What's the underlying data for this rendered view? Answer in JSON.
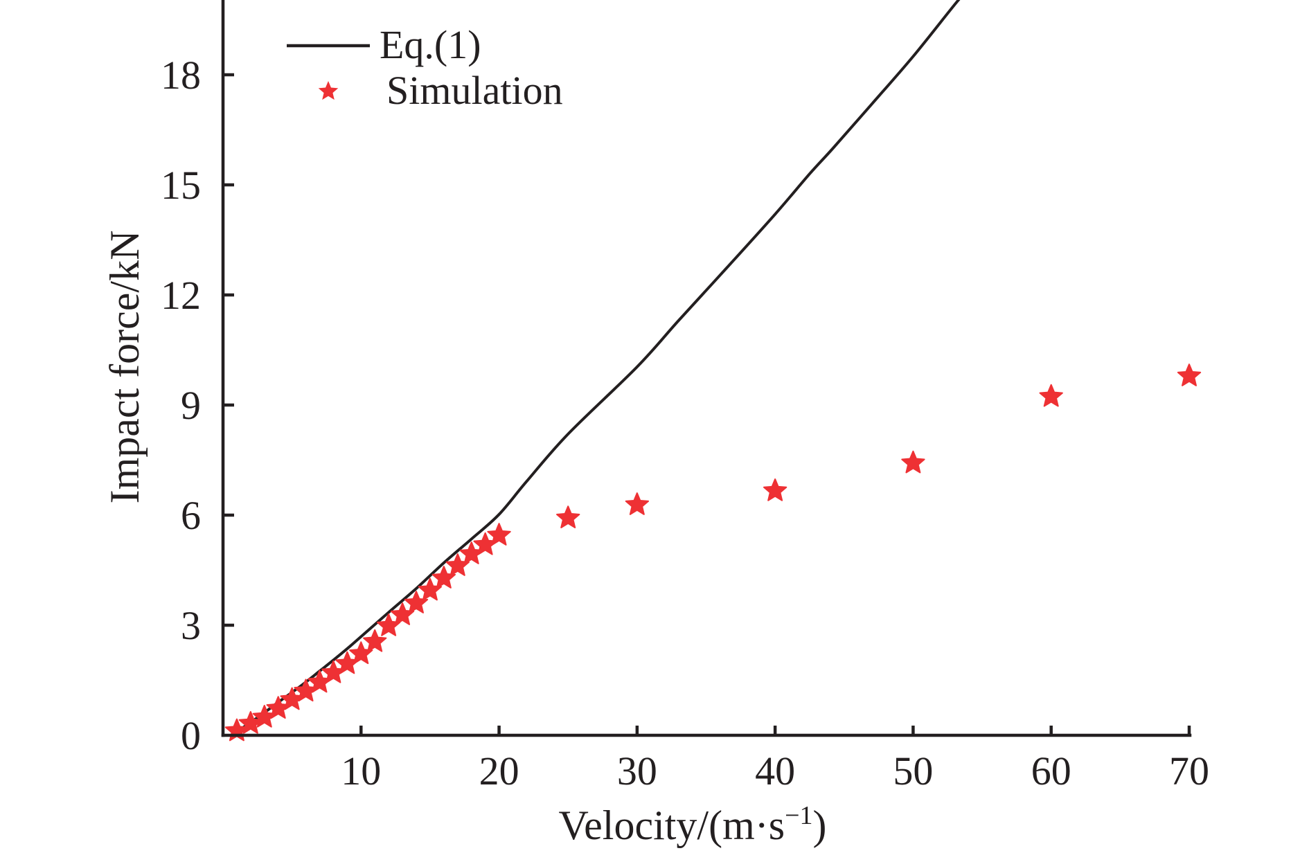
{
  "chart_data": {
    "type": "line",
    "title": "",
    "xlabel": "Velocity/(m·s",
    "xlabel_superscript": "−1",
    "xlabel_suffix": ")",
    "ylabel": "Impact force/kN",
    "xlim": [
      0,
      70
    ],
    "ylim": [
      0,
      20.4
    ],
    "x_ticks": [
      10,
      20,
      30,
      40,
      50,
      60,
      70
    ],
    "y_ticks": [
      0,
      3,
      6,
      9,
      12,
      15,
      18
    ],
    "grid": false,
    "legend_position": "top-left",
    "series": [
      {
        "name": "Eq.(1)",
        "kind": "line",
        "color": "#231f20",
        "points": [
          [
            1,
            0.1
          ],
          [
            2,
            0.35
          ],
          [
            3,
            0.62
          ],
          [
            4,
            0.9
          ],
          [
            5,
            1.17
          ],
          [
            6,
            1.45
          ],
          [
            7,
            1.75
          ],
          [
            8,
            2.05
          ],
          [
            9.4,
            2.49
          ],
          [
            12,
            3.35
          ],
          [
            14,
            4.0
          ],
          [
            16,
            4.7
          ],
          [
            18,
            5.35
          ],
          [
            20,
            6.02
          ],
          [
            22,
            6.92
          ],
          [
            25,
            8.21
          ],
          [
            30,
            10.04
          ],
          [
            33,
            11.3
          ],
          [
            36.5,
            12.74
          ],
          [
            40,
            14.2
          ],
          [
            42.5,
            15.3
          ],
          [
            44.2,
            16.0
          ],
          [
            47,
            17.2
          ],
          [
            50,
            18.5
          ],
          [
            53.2,
            20.0
          ],
          [
            54.2,
            20.4
          ]
        ]
      },
      {
        "name": "Simulation",
        "kind": "scatter",
        "marker": "star",
        "color": "#ee3134",
        "points": [
          [
            1,
            0.12
          ],
          [
            2,
            0.32
          ],
          [
            3,
            0.49
          ],
          [
            4,
            0.73
          ],
          [
            5,
            0.97
          ],
          [
            6,
            1.2
          ],
          [
            7,
            1.44
          ],
          [
            8,
            1.7
          ],
          [
            9,
            1.95
          ],
          [
            10,
            2.22
          ],
          [
            11,
            2.55
          ],
          [
            12,
            2.98
          ],
          [
            13,
            3.28
          ],
          [
            14,
            3.6
          ],
          [
            15,
            3.95
          ],
          [
            16,
            4.28
          ],
          [
            17,
            4.62
          ],
          [
            18,
            4.94
          ],
          [
            19,
            5.19
          ],
          [
            20,
            5.45
          ],
          [
            25,
            5.92
          ],
          [
            30,
            6.28
          ],
          [
            40,
            6.66
          ],
          [
            50,
            7.42
          ],
          [
            60,
            9.23
          ],
          [
            70,
            9.79
          ]
        ]
      }
    ]
  },
  "legend": {
    "items": [
      {
        "label": "Eq.(1)",
        "symbol": "line"
      },
      {
        "label": "Simulation",
        "symbol": "star"
      }
    ]
  }
}
